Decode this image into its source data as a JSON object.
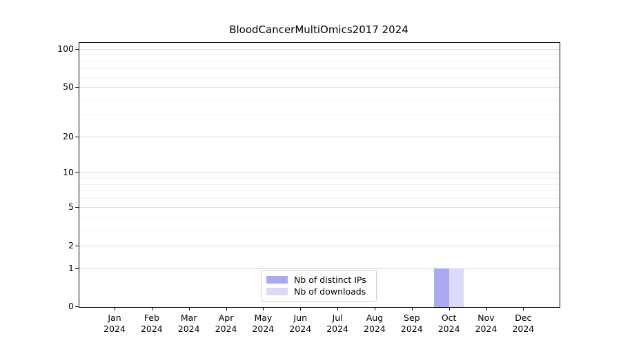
{
  "figure": {
    "background": "#ffffff",
    "text_color": "#000000",
    "axis_color": "#000000",
    "grid_major_color": "#d9d9d9",
    "grid_minor_color": "#f3f3f3"
  },
  "chart_data": {
    "type": "bar",
    "title": "BloodCancerMultiOmics2017 2024",
    "xlabel": "",
    "ylabel": "",
    "categories": [
      "Jan 2024",
      "Feb 2024",
      "Mar 2024",
      "Apr 2024",
      "May 2024",
      "Jun 2024",
      "Jul 2024",
      "Aug 2024",
      "Sep 2024",
      "Oct 2024",
      "Nov 2024",
      "Dec 2024"
    ],
    "series": [
      {
        "name": "Nb of distinct IPs",
        "color": "#a9a9f4",
        "values": [
          0,
          0,
          0,
          0,
          0,
          0,
          0,
          0,
          0,
          1,
          0,
          0
        ]
      },
      {
        "name": "Nb of downloads",
        "color": "#dadaf8",
        "values": [
          0,
          0,
          0,
          0,
          0,
          0,
          0,
          0,
          0,
          1,
          0,
          0
        ]
      }
    ],
    "yscale": "log1p",
    "ylim": [
      0,
      110
    ],
    "yticks": [
      0,
      1,
      2,
      5,
      10,
      20,
      50,
      100
    ],
    "yticks_minor": [
      3,
      4,
      6,
      7,
      8,
      9,
      30,
      40,
      60,
      70,
      80,
      90
    ],
    "grid": true,
    "legend_position": "lower-center-inside"
  }
}
